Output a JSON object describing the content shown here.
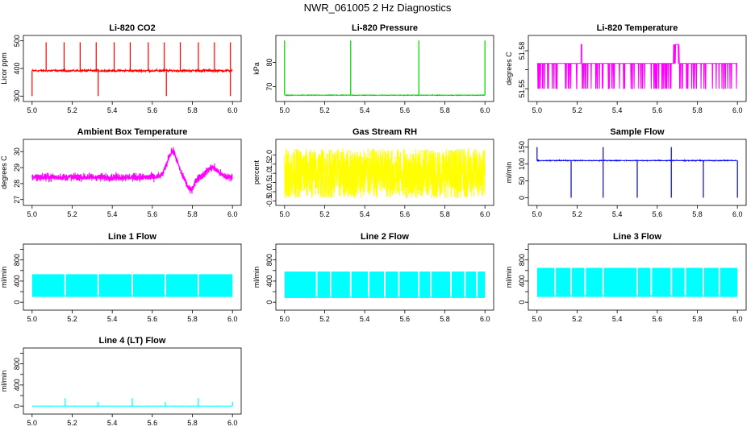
{
  "title": "NWR_061005  2 Hz Diagnostics",
  "chart_data": [
    {
      "type": "line",
      "title": "Li-820 CO2",
      "ylabel": "Licor ppm",
      "color": "#ff0000",
      "xlim": [
        5.0,
        6.0
      ],
      "ylim": [
        290,
        510
      ],
      "xticks": [
        5.0,
        5.2,
        5.4,
        5.6,
        5.8,
        6.0
      ],
      "xtick_labels": [
        "5.0",
        "5.2",
        "5.4",
        "5.6",
        "5.8",
        "6.0"
      ],
      "yticks": [
        300,
        400,
        500
      ],
      "ytick_labels": [
        "300",
        "400",
        "500"
      ],
      "baseline": 392,
      "noise": 6,
      "pattern": "spikes_updown",
      "spikes_up": [
        5.07,
        5.16,
        5.24,
        5.32,
        5.41,
        5.49,
        5.58,
        5.66,
        5.74,
        5.83,
        5.91,
        5.99
      ],
      "spikes_up_value": 495,
      "spikes_down": [
        5.0,
        5.33,
        5.67,
        5.99
      ],
      "spikes_down_value": 300
    },
    {
      "type": "line",
      "title": "Li-820 Pressure",
      "ylabel": "kPa",
      "color": "#00cc00",
      "xlim": [
        5.0,
        6.0
      ],
      "ylim": [
        65,
        90
      ],
      "xticks": [
        5.0,
        5.2,
        5.4,
        5.6,
        5.8,
        6.0
      ],
      "xtick_labels": [
        "5.0",
        "5.2",
        "5.4",
        "5.6",
        "5.8",
        "6.0"
      ],
      "yticks": [
        70,
        80
      ],
      "ytick_labels": [
        "70",
        "80"
      ],
      "baseline": 66.5,
      "noise": 0.2,
      "pattern": "spikes_up",
      "spikes_up": [
        5.0,
        5.33,
        5.67,
        6.0
      ],
      "spikes_up_value": 89
    },
    {
      "type": "line",
      "title": "Li-820 Temperature",
      "ylabel": "degrees C",
      "color": "#ff00ff",
      "xlim": [
        5.0,
        6.0
      ],
      "ylim": [
        51.542,
        51.59
      ],
      "xticks": [
        5.0,
        5.2,
        5.4,
        5.6,
        5.8,
        6.0
      ],
      "xtick_labels": [
        "5.0",
        "5.2",
        "5.4",
        "5.6",
        "5.8",
        "6.0"
      ],
      "yticks": [
        51.55,
        51.58
      ],
      "ytick_labels": [
        "51.55",
        "51.58"
      ],
      "ytick_minor": [
        51.565
      ],
      "baseline": 51.57,
      "pattern": "levels",
      "low_value": 51.55,
      "high_value": 51.585
    },
    {
      "type": "line",
      "title": "Ambient Box Temperature",
      "ylabel": "degrees C",
      "color": "#ff00ff",
      "xlim": [
        5.0,
        6.0
      ],
      "ylim": [
        26.8,
        30.6
      ],
      "xticks": [
        5.0,
        5.2,
        5.4,
        5.6,
        5.8,
        6.0
      ],
      "xtick_labels": [
        "5.0",
        "5.2",
        "5.4",
        "5.6",
        "5.8",
        "6.0"
      ],
      "yticks": [
        27,
        28,
        29,
        30
      ],
      "ytick_labels": [
        "27",
        "28",
        "29",
        "30"
      ],
      "baseline": 28.4,
      "noise": 0.35,
      "pattern": "wave",
      "wave_peak_x": 5.7,
      "wave_peak_value": 30.0,
      "wave_trough_x": 5.79,
      "wave_trough_value": 27.6
    },
    {
      "type": "line",
      "title": "Gas Stream RH",
      "ylabel": "percent",
      "color": "#ffff00",
      "xlim": [
        5.0,
        6.0
      ],
      "ylim": [
        -0.6,
        2.7
      ],
      "xticks": [
        5.0,
        5.2,
        5.4,
        5.6,
        5.8,
        6.0
      ],
      "xtick_labels": [
        "5.0",
        "5.2",
        "5.4",
        "5.6",
        "5.8",
        "6.0"
      ],
      "yticks": [
        -0.5,
        0.0,
        0.5,
        1.0,
        1.5,
        2.0
      ],
      "ytick_labels": [
        "-0.5",
        "0.0",
        "0.5",
        "1.0",
        "1.5",
        "2.0"
      ],
      "baseline": 1.0,
      "noise": 1.35,
      "pattern": "noise_band"
    },
    {
      "type": "line",
      "title": "Sample Flow",
      "ylabel": "ml/min",
      "color": "#0000ff",
      "xlim": [
        5.0,
        6.0
      ],
      "ylim": [
        -15,
        165
      ],
      "xticks": [
        5.0,
        5.2,
        5.4,
        5.6,
        5.8,
        6.0
      ],
      "xtick_labels": [
        "5.0",
        "5.2",
        "5.4",
        "5.6",
        "5.8",
        "6.0"
      ],
      "yticks": [
        0,
        50,
        100,
        150
      ],
      "ytick_labels": [
        "0",
        "50",
        "100",
        "150"
      ],
      "baseline": 110,
      "noise": 2,
      "pattern": "spikes_updown",
      "spikes_up": [
        5.0,
        5.33,
        5.67
      ],
      "spikes_up_value": 150,
      "spikes_down": [
        5.17,
        5.33,
        5.5,
        5.67,
        5.83,
        6.0
      ],
      "spikes_down_value": 0
    },
    {
      "type": "line",
      "title": "Line 1 Flow",
      "ylabel": "ml/min",
      "color": "#00ffff",
      "xlim": [
        5.0,
        6.0
      ],
      "ylim": [
        -100,
        1050
      ],
      "xticks": [
        5.0,
        5.2,
        5.4,
        5.6,
        5.8,
        6.0
      ],
      "xtick_labels": [
        "5.0",
        "5.2",
        "5.4",
        "5.6",
        "5.8",
        "6.0"
      ],
      "yticks": [
        0,
        400,
        800
      ],
      "ytick_labels": [
        "0",
        "400",
        "800"
      ],
      "ytick_minor": [
        200,
        600,
        1000
      ],
      "band_low": 100,
      "band_high": 530,
      "pattern": "band_gaps",
      "gaps": [
        5.165,
        5.33,
        5.5,
        5.665,
        5.83
      ]
    },
    {
      "type": "line",
      "title": "Line 2 Flow",
      "ylabel": "ml/min",
      "color": "#00ffff",
      "xlim": [
        5.0,
        6.0
      ],
      "ylim": [
        -100,
        1050
      ],
      "xticks": [
        5.0,
        5.2,
        5.4,
        5.6,
        5.8,
        6.0
      ],
      "xtick_labels": [
        "5.0",
        "5.2",
        "5.4",
        "5.6",
        "5.8",
        "6.0"
      ],
      "yticks": [
        0,
        400,
        800
      ],
      "ytick_labels": [
        "0",
        "400",
        "800"
      ],
      "ytick_minor": [
        200,
        600,
        1000
      ],
      "band_low": 80,
      "band_high": 580,
      "pattern": "band_gaps",
      "gaps": [
        5.16,
        5.23,
        5.33,
        5.42,
        5.5,
        5.57,
        5.67,
        5.73,
        5.83,
        5.9,
        5.96
      ]
    },
    {
      "type": "line",
      "title": "Line 3 Flow",
      "ylabel": "ml/min",
      "color": "#00ffff",
      "xlim": [
        5.0,
        6.0
      ],
      "ylim": [
        -100,
        1050
      ],
      "xticks": [
        5.0,
        5.2,
        5.4,
        5.6,
        5.8,
        6.0
      ],
      "xtick_labels": [
        "5.0",
        "5.2",
        "5.4",
        "5.6",
        "5.8",
        "6.0"
      ],
      "yticks": [
        0,
        400,
        800
      ],
      "ytick_labels": [
        "0",
        "400",
        "800"
      ],
      "ytick_minor": [
        200,
        600,
        1000
      ],
      "band_low": 100,
      "band_high": 650,
      "pattern": "band_gaps",
      "gaps": [
        5.09,
        5.17,
        5.24,
        5.33,
        5.5,
        5.57,
        5.67,
        5.74,
        5.83,
        5.91
      ]
    },
    {
      "type": "line",
      "title": "Line 4 (LT) Flow",
      "ylabel": "ml/min",
      "color": "#00ffff",
      "xlim": [
        5.0,
        6.0
      ],
      "ylim": [
        -100,
        1050
      ],
      "xticks": [
        5.0,
        5.2,
        5.4,
        5.6,
        5.8,
        6.0
      ],
      "xtick_labels": [
        "5.0",
        "5.2",
        "5.4",
        "5.6",
        "5.8",
        "6.0"
      ],
      "yticks": [
        0,
        400,
        800
      ],
      "ytick_labels": [
        "0",
        "400",
        "800"
      ],
      "ytick_minor": [
        200,
        600,
        1000
      ],
      "baseline": 0,
      "noise": 5,
      "pattern": "spikes_up",
      "spikes_up": [
        5.165,
        5.33,
        5.5,
        5.665,
        5.83,
        6.0
      ],
      "spikes_up_heights": [
        150,
        80,
        150,
        80,
        150,
        80
      ]
    }
  ]
}
